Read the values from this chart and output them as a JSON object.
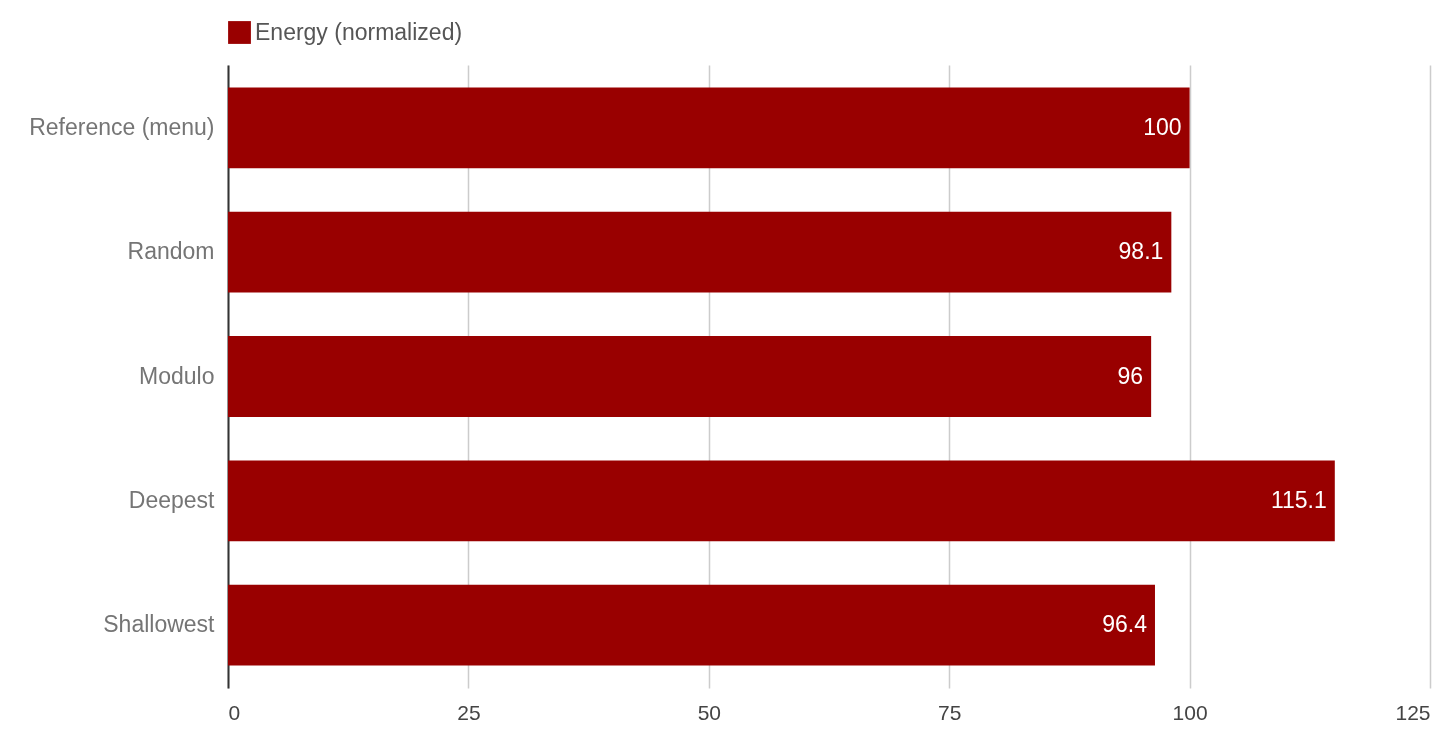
{
  "chart_data": {
    "type": "bar",
    "orientation": "horizontal",
    "categories": [
      "Reference (menu)",
      "Random",
      "Modulo",
      "Deepest",
      "Shallowest"
    ],
    "series": [
      {
        "name": "Energy (normalized)",
        "color": "#990000",
        "values": [
          100,
          98.1,
          96,
          115.1,
          96.4
        ]
      }
    ],
    "xlim": [
      0,
      125
    ],
    "xticks": [
      0,
      25,
      50,
      75,
      100,
      125
    ],
    "grid": "x",
    "legend": "top",
    "data_labels": true
  }
}
